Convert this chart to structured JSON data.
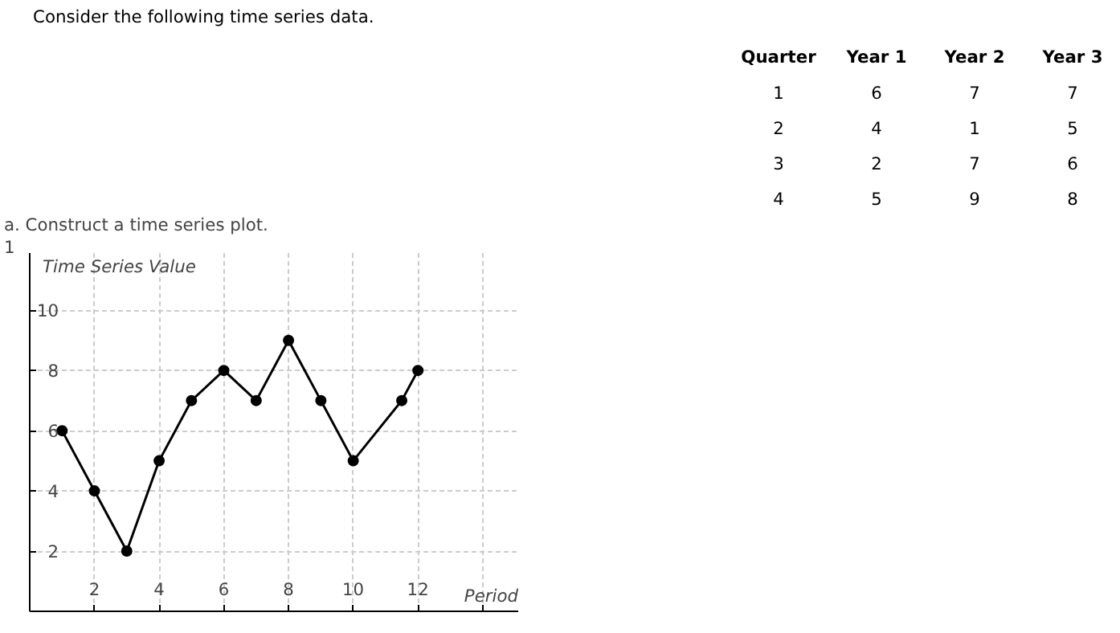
{
  "chart_data": [
    {
      "type": "heatmap",
      "annotations": [
        "Consider the following time series data."
      ],
      "ylabel": "Quarter",
      "categories": [
        "Year 1",
        "Year 2",
        "Year 3"
      ],
      "y_categories": [
        "1",
        "2",
        "3",
        "4"
      ],
      "cells": [
        [
          6,
          7,
          7
        ],
        [
          4,
          1,
          5
        ],
        [
          2,
          7,
          6
        ],
        [
          5,
          9,
          8
        ]
      ],
      "data_labels": true
    },
    {
      "type": "line",
      "title": "a. Construct a time series plot.",
      "xlabel": "Period",
      "ylabel": "Time Series Value",
      "annotations": [
        "1"
      ],
      "series": [
        {
          "color": "#000000",
          "x": [
            1,
            2,
            3,
            4,
            5,
            6,
            7,
            8,
            9,
            10,
            11.5,
            12
          ],
          "values": [
            6,
            4,
            2,
            5,
            7,
            8,
            7,
            9,
            7,
            5,
            7,
            8
          ]
        }
      ],
      "xlim": [
        0,
        15.1
      ],
      "ylim": [
        0,
        11.9
      ],
      "xticks": [
        2,
        4,
        6,
        8,
        10,
        12,
        {
          "value": 14,
          "label": null
        }
      ],
      "yticks": [
        2,
        4,
        6,
        8,
        10
      ],
      "grid": true,
      "marker": "circle",
      "line_style": "solid"
    }
  ]
}
